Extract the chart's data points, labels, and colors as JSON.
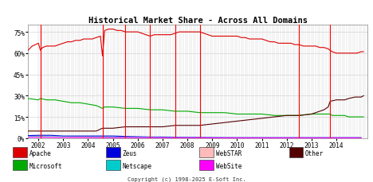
{
  "title": "Historical Market Share - Across All Domains",
  "copyright": "Copyright (c) 1998-2025 E-Soft Inc.",
  "ylabel_ticks": [
    "0%",
    "15%",
    "30%",
    "45%",
    "60%",
    "75%"
  ],
  "ytick_vals": [
    0,
    15,
    30,
    45,
    60,
    75
  ],
  "ylim": [
    0,
    80
  ],
  "xlim_start": 2001.58,
  "xlim_end": 2015.25,
  "xtick_years": [
    2002,
    2003,
    2004,
    2005,
    2006,
    2007,
    2008,
    2009,
    2010,
    2011,
    2012,
    2013,
    2014
  ],
  "red_vlines": [
    2002.08,
    2004.58,
    2005.5,
    2006.5,
    2007.5,
    2008.5,
    2012.5,
    2013.75
  ],
  "bg_color": "#ffffff",
  "grid_color": "#cccccc",
  "series_order": [
    "Apache",
    "Microsoft",
    "Other",
    "Zeus",
    "Netscape",
    "WebSTAR",
    "WebSite"
  ],
  "series": {
    "Apache": {
      "color": "#dd0000",
      "points": [
        [
          2001.58,
          62
        ],
        [
          2001.75,
          65
        ],
        [
          2002.0,
          67
        ],
        [
          2002.08,
          62
        ],
        [
          2002.17,
          64
        ],
        [
          2002.33,
          65
        ],
        [
          2002.5,
          65
        ],
        [
          2002.67,
          65
        ],
        [
          2002.83,
          66
        ],
        [
          2003.0,
          67
        ],
        [
          2003.17,
          68
        ],
        [
          2003.33,
          68
        ],
        [
          2003.5,
          69
        ],
        [
          2003.67,
          69
        ],
        [
          2003.83,
          70
        ],
        [
          2004.0,
          70
        ],
        [
          2004.17,
          70
        ],
        [
          2004.33,
          71
        ],
        [
          2004.5,
          72
        ],
        [
          2004.58,
          58
        ],
        [
          2004.67,
          76
        ],
        [
          2004.83,
          77
        ],
        [
          2005.0,
          77
        ],
        [
          2005.17,
          76
        ],
        [
          2005.33,
          76
        ],
        [
          2005.5,
          75
        ],
        [
          2005.67,
          75
        ],
        [
          2005.83,
          75
        ],
        [
          2006.0,
          75
        ],
        [
          2006.17,
          74
        ],
        [
          2006.33,
          73
        ],
        [
          2006.5,
          72
        ],
        [
          2006.67,
          73
        ],
        [
          2006.83,
          73
        ],
        [
          2007.0,
          73
        ],
        [
          2007.17,
          73
        ],
        [
          2007.33,
          73
        ],
        [
          2007.5,
          74
        ],
        [
          2007.67,
          75
        ],
        [
          2007.83,
          75
        ],
        [
          2008.0,
          75
        ],
        [
          2008.17,
          75
        ],
        [
          2008.33,
          75
        ],
        [
          2008.5,
          75
        ],
        [
          2008.67,
          74
        ],
        [
          2008.83,
          73
        ],
        [
          2009.0,
          72
        ],
        [
          2009.17,
          72
        ],
        [
          2009.33,
          72
        ],
        [
          2009.5,
          72
        ],
        [
          2009.67,
          72
        ],
        [
          2009.83,
          72
        ],
        [
          2010.0,
          72
        ],
        [
          2010.17,
          71
        ],
        [
          2010.33,
          71
        ],
        [
          2010.5,
          70
        ],
        [
          2010.67,
          70
        ],
        [
          2010.83,
          70
        ],
        [
          2011.0,
          70
        ],
        [
          2011.17,
          69
        ],
        [
          2011.33,
          68
        ],
        [
          2011.5,
          68
        ],
        [
          2011.67,
          67
        ],
        [
          2011.83,
          67
        ],
        [
          2012.0,
          67
        ],
        [
          2012.17,
          67
        ],
        [
          2012.33,
          66
        ],
        [
          2012.5,
          66
        ],
        [
          2012.67,
          65
        ],
        [
          2012.83,
          65
        ],
        [
          2013.0,
          65
        ],
        [
          2013.17,
          65
        ],
        [
          2013.33,
          64
        ],
        [
          2013.5,
          64
        ],
        [
          2013.67,
          63
        ],
        [
          2013.75,
          62
        ],
        [
          2013.83,
          61
        ],
        [
          2014.0,
          60
        ],
        [
          2014.17,
          60
        ],
        [
          2014.33,
          60
        ],
        [
          2014.5,
          60
        ],
        [
          2014.67,
          60
        ],
        [
          2014.83,
          60
        ],
        [
          2015.0,
          61
        ],
        [
          2015.1,
          61
        ]
      ]
    },
    "Microsoft": {
      "color": "#00aa00",
      "points": [
        [
          2001.58,
          28
        ],
        [
          2002.0,
          27
        ],
        [
          2002.08,
          28
        ],
        [
          2002.33,
          27
        ],
        [
          2002.67,
          27
        ],
        [
          2003.0,
          26
        ],
        [
          2003.33,
          25
        ],
        [
          2003.67,
          25
        ],
        [
          2004.0,
          24
        ],
        [
          2004.33,
          23
        ],
        [
          2004.58,
          21
        ],
        [
          2004.67,
          22
        ],
        [
          2005.0,
          22
        ],
        [
          2005.5,
          21
        ],
        [
          2006.0,
          21
        ],
        [
          2006.5,
          20
        ],
        [
          2007.0,
          20
        ],
        [
          2007.5,
          19
        ],
        [
          2008.0,
          19
        ],
        [
          2008.5,
          18
        ],
        [
          2009.0,
          18
        ],
        [
          2009.5,
          18
        ],
        [
          2010.0,
          17
        ],
        [
          2010.5,
          17
        ],
        [
          2011.0,
          17
        ],
        [
          2011.5,
          16
        ],
        [
          2012.0,
          16
        ],
        [
          2012.5,
          16
        ],
        [
          2013.0,
          17
        ],
        [
          2013.5,
          17
        ],
        [
          2013.75,
          17
        ],
        [
          2013.83,
          16
        ],
        [
          2014.0,
          16
        ],
        [
          2014.33,
          16
        ],
        [
          2014.5,
          15
        ],
        [
          2014.75,
          15
        ],
        [
          2015.0,
          15
        ],
        [
          2015.1,
          15
        ]
      ]
    },
    "Other": {
      "color": "#550000",
      "points": [
        [
          2001.58,
          5
        ],
        [
          2002.0,
          5
        ],
        [
          2002.5,
          5
        ],
        [
          2003.0,
          5
        ],
        [
          2003.5,
          5
        ],
        [
          2004.0,
          5
        ],
        [
          2004.33,
          5
        ],
        [
          2004.58,
          7
        ],
        [
          2004.67,
          7
        ],
        [
          2005.0,
          7
        ],
        [
          2005.5,
          8
        ],
        [
          2006.0,
          8
        ],
        [
          2006.5,
          8
        ],
        [
          2007.0,
          8
        ],
        [
          2007.5,
          9
        ],
        [
          2008.0,
          9
        ],
        [
          2008.5,
          9
        ],
        [
          2009.0,
          10
        ],
        [
          2009.5,
          11
        ],
        [
          2010.0,
          12
        ],
        [
          2010.5,
          13
        ],
        [
          2011.0,
          14
        ],
        [
          2011.5,
          15
        ],
        [
          2012.0,
          16
        ],
        [
          2012.5,
          16
        ],
        [
          2013.0,
          17
        ],
        [
          2013.5,
          20
        ],
        [
          2013.67,
          22
        ],
        [
          2013.75,
          26
        ],
        [
          2014.0,
          27
        ],
        [
          2014.33,
          27
        ],
        [
          2014.5,
          28
        ],
        [
          2014.75,
          29
        ],
        [
          2015.0,
          29
        ],
        [
          2015.1,
          30
        ]
      ]
    },
    "Zeus": {
      "color": "#0000dd",
      "points": [
        [
          2001.58,
          1.8
        ],
        [
          2002.0,
          2.0
        ],
        [
          2002.5,
          2.0
        ],
        [
          2003.0,
          1.5
        ],
        [
          2003.5,
          1.5
        ],
        [
          2004.0,
          1.5
        ],
        [
          2004.5,
          1.5
        ],
        [
          2004.58,
          1.5
        ],
        [
          2004.67,
          1.5
        ],
        [
          2005.0,
          1.5
        ],
        [
          2005.5,
          1.2
        ],
        [
          2006.0,
          1.0
        ],
        [
          2006.5,
          0.8
        ],
        [
          2007.0,
          0.8
        ],
        [
          2007.5,
          0.7
        ],
        [
          2008.0,
          0.6
        ],
        [
          2008.5,
          0.5
        ],
        [
          2009.0,
          0.4
        ],
        [
          2010.0,
          0.3
        ],
        [
          2011.0,
          0.3
        ],
        [
          2012.0,
          0.3
        ],
        [
          2013.0,
          0.3
        ],
        [
          2014.0,
          0.3
        ],
        [
          2015.0,
          0.3
        ]
      ]
    },
    "Netscape": {
      "color": "#00cccc",
      "points": [
        [
          2001.58,
          1.2
        ],
        [
          2002.0,
          1.2
        ],
        [
          2002.5,
          1.0
        ],
        [
          2003.0,
          1.0
        ],
        [
          2003.5,
          0.8
        ],
        [
          2004.0,
          0.8
        ],
        [
          2004.5,
          0.8
        ],
        [
          2004.58,
          0.5
        ],
        [
          2004.67,
          0.8
        ],
        [
          2005.0,
          0.8
        ],
        [
          2005.5,
          0.5
        ],
        [
          2006.0,
          0.5
        ],
        [
          2006.5,
          0.4
        ],
        [
          2007.0,
          0.4
        ],
        [
          2007.5,
          0.4
        ],
        [
          2008.0,
          0.4
        ],
        [
          2008.5,
          0.3
        ],
        [
          2009.0,
          0.3
        ],
        [
          2010.0,
          0.3
        ],
        [
          2011.0,
          0.3
        ],
        [
          2012.0,
          0.3
        ],
        [
          2013.0,
          0.3
        ],
        [
          2014.0,
          0.3
        ],
        [
          2015.0,
          0.3
        ]
      ]
    },
    "WebSTAR": {
      "color": "#ffbbbb",
      "points": [
        [
          2001.58,
          0.9
        ],
        [
          2002.0,
          0.9
        ],
        [
          2003.0,
          0.7
        ],
        [
          2004.0,
          0.5
        ],
        [
          2005.0,
          0.4
        ],
        [
          2006.0,
          0.3
        ],
        [
          2007.0,
          0.2
        ],
        [
          2008.0,
          0.2
        ],
        [
          2009.0,
          0.2
        ],
        [
          2010.0,
          0.2
        ],
        [
          2011.0,
          0.2
        ],
        [
          2012.0,
          0.2
        ],
        [
          2013.0,
          0.2
        ],
        [
          2014.0,
          0.2
        ],
        [
          2015.0,
          0.2
        ]
      ]
    },
    "WebSite": {
      "color": "#ff00ff",
      "points": [
        [
          2001.58,
          0.6
        ],
        [
          2002.0,
          0.6
        ],
        [
          2003.0,
          0.5
        ],
        [
          2004.0,
          0.4
        ],
        [
          2005.0,
          0.3
        ],
        [
          2006.0,
          0.3
        ],
        [
          2007.0,
          0.3
        ],
        [
          2008.0,
          0.3
        ],
        [
          2009.0,
          0.2
        ],
        [
          2010.0,
          0.2
        ],
        [
          2011.0,
          0.2
        ],
        [
          2012.0,
          0.2
        ],
        [
          2013.0,
          0.2
        ],
        [
          2014.0,
          0.2
        ],
        [
          2015.0,
          0.2
        ]
      ]
    }
  },
  "legend_row1": [
    {
      "label": "Apache",
      "color": "#dd0000"
    },
    {
      "label": "Zeus",
      "color": "#0000dd"
    },
    {
      "label": "WebSTAR",
      "color": "#ffbbbb"
    },
    {
      "label": "Other",
      "color": "#550000"
    }
  ],
  "legend_row2": [
    {
      "label": "Microsoft",
      "color": "#00aa00"
    },
    {
      "label": "Netscape",
      "color": "#00cccc"
    },
    {
      "label": "WebSite",
      "color": "#ff00ff"
    }
  ]
}
